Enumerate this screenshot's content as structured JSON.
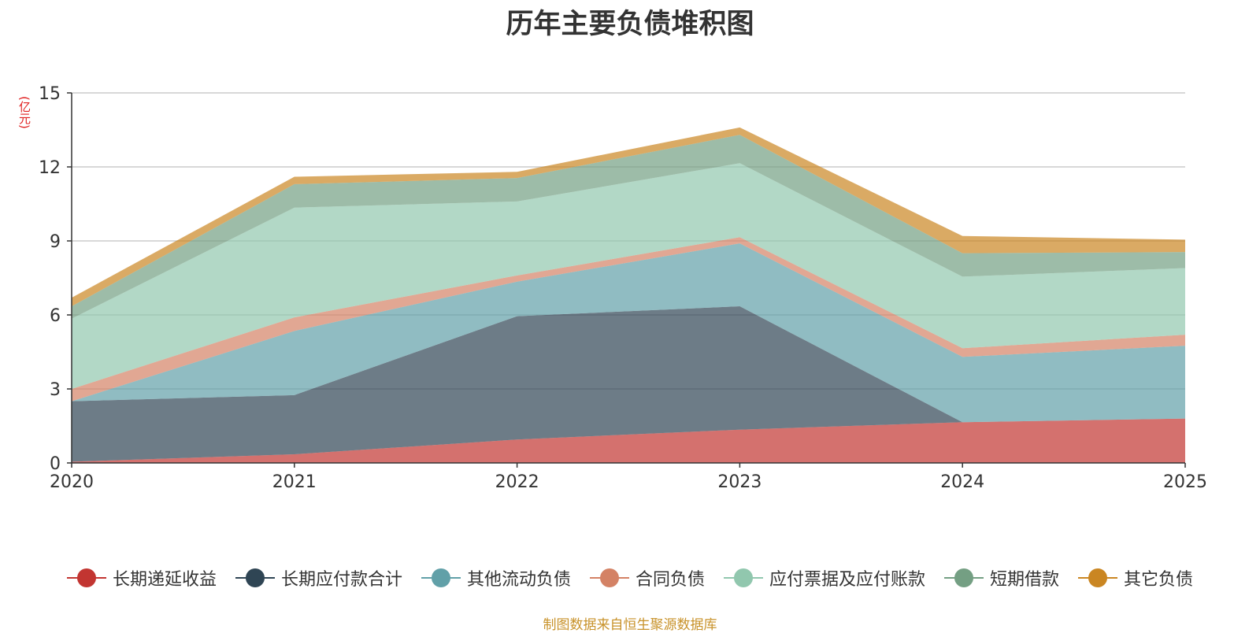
{
  "title": "历年主要负债堆积图",
  "unit_label": "(亿元)",
  "source_note": "制图数据来自恒生聚源数据库",
  "chart_data": {
    "type": "area",
    "stacked": true,
    "title": "历年主要负债堆积图",
    "ylabel": "(亿元)",
    "x": [
      "2020",
      "2021",
      "2022",
      "2023",
      "2024",
      "2025"
    ],
    "ylim": [
      0,
      15
    ],
    "yticks": [
      0,
      3,
      6,
      9,
      12,
      15
    ],
    "grid": true,
    "legend_position": "bottom",
    "series": [
      {
        "name": "长期递延收益",
        "color": "#c23531",
        "values": [
          0.05,
          0.35,
          0.95,
          1.35,
          1.65,
          1.8
        ]
      },
      {
        "name": "长期应付款合计",
        "color": "#2f4554",
        "values": [
          2.45,
          2.4,
          5.0,
          5.0,
          0.0,
          0.0
        ]
      },
      {
        "name": "其他流动负债",
        "color": "#61a0a8",
        "values": [
          0.0,
          2.6,
          1.4,
          2.55,
          2.65,
          2.95
        ]
      },
      {
        "name": "合同负债",
        "color": "#d48265",
        "values": [
          0.5,
          0.55,
          0.25,
          0.25,
          0.35,
          0.45
        ]
      },
      {
        "name": "应付票据及应付账款",
        "color": "#91c7ae",
        "values": [
          2.85,
          4.45,
          3.0,
          3.0,
          2.9,
          2.7
        ]
      },
      {
        "name": "短期借款",
        "color": "#749f83",
        "values": [
          0.5,
          0.95,
          0.95,
          1.15,
          0.95,
          0.65
        ]
      },
      {
        "name": "其它负债",
        "color": "#ca8622",
        "values": [
          0.35,
          0.3,
          0.25,
          0.3,
          0.7,
          0.5
        ]
      }
    ]
  }
}
